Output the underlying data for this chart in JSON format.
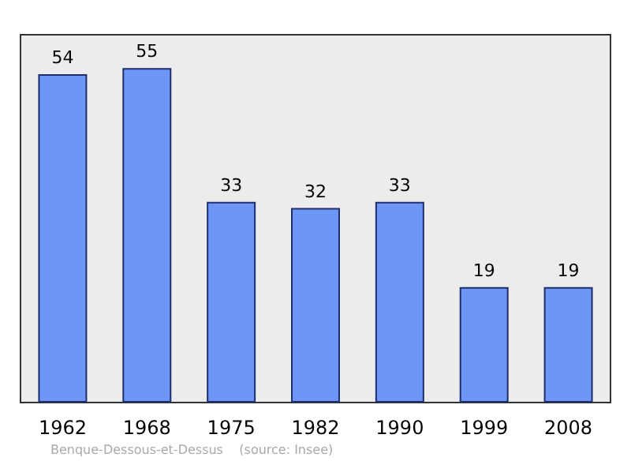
{
  "chart_data": {
    "type": "bar",
    "categories": [
      "1962",
      "1968",
      "1975",
      "1982",
      "1990",
      "1999",
      "2008"
    ],
    "values": [
      54,
      55,
      33,
      32,
      33,
      19,
      19
    ],
    "color": "#6e96f5",
    "data_labels": true,
    "annotations": [
      "Benque-Dessous-et-Dessus    (source: Insee)"
    ]
  }
}
